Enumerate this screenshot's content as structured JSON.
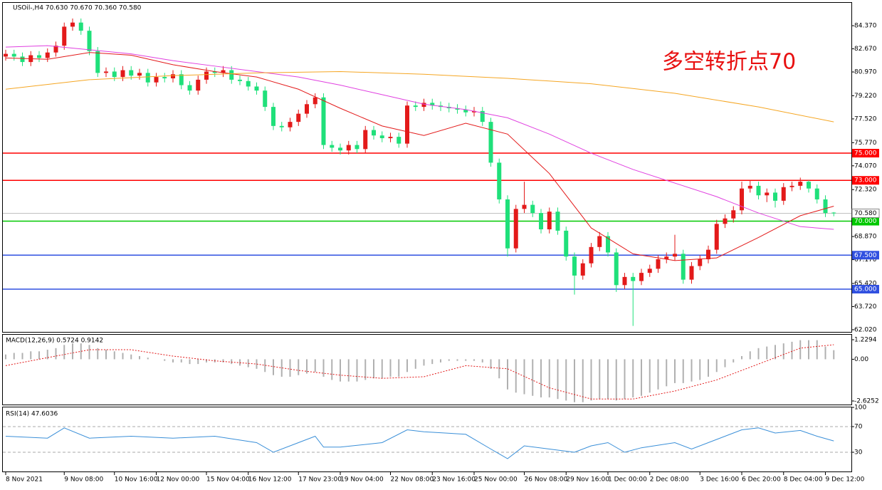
{
  "chart_data": {
    "type": "candlestick",
    "title": "USOil-,H4  70.630 70.670 70.360 70.580",
    "annotation": "多空转折点70",
    "categories": [
      "8 Nov 2021",
      null,
      null,
      null,
      null,
      null,
      null,
      "9 Nov 08:00",
      null,
      null,
      null,
      null,
      null,
      "10 Nov 16:00",
      null,
      null,
      null,
      null,
      "12 Nov 00:00",
      null,
      null,
      null,
      null,
      null,
      "15 Nov 04:00",
      null,
      null,
      null,
      null,
      "16 Nov 12:00",
      null,
      null,
      null,
      null,
      null,
      "17 Nov 23:00",
      null,
      null,
      null,
      null,
      "19 Nov 04:00",
      null,
      null,
      null,
      null,
      null,
      "22 Nov 08:00",
      null,
      null,
      null,
      null,
      "23 Nov 16:00",
      null,
      null,
      null,
      null,
      "25 Nov 00:00",
      null,
      null,
      null,
      null,
      null,
      "26 Nov 08:00",
      null,
      null,
      null,
      null,
      "29 Nov 16:00",
      null,
      null,
      null,
      null,
      "1 Dec 00:00",
      null,
      null,
      null,
      null,
      "2 Dec 08:00",
      null,
      null,
      null,
      null,
      null,
      "3 Dec 16:00",
      null,
      null,
      null,
      null,
      "6 Dec 20:00",
      null,
      null,
      null,
      null,
      "8 Dec 04:00",
      null,
      null,
      null,
      null,
      "9 Dec 12:00",
      null
    ],
    "open": [
      82.1,
      82.3,
      82.1,
      81.7,
      82.2,
      82.0,
      82.4,
      82.9,
      84.3,
      84.6,
      84.0,
      82.5,
      80.9,
      81.0,
      80.6,
      81.1,
      80.7,
      80.9,
      80.2,
      80.6,
      80.5,
      80.8,
      80.0,
      79.6,
      80.4,
      81.0,
      80.9,
      81.1,
      80.4,
      80.3,
      79.9,
      79.6,
      78.4,
      77.0,
      76.9,
      77.3,
      77.9,
      78.6,
      79.1,
      75.6,
      75.4,
      75.2,
      75.6,
      75.3,
      76.7,
      76.3,
      76.1,
      76.2,
      75.7,
      78.5,
      78.4,
      78.7,
      78.5,
      78.4,
      78.3,
      78.2,
      78.0,
      78.1,
      77.3,
      74.3,
      71.6,
      68.0,
      70.9,
      71.2,
      70.6,
      69.4,
      70.7,
      69.3,
      67.4,
      66.0,
      66.9,
      68.1,
      68.9,
      67.7,
      65.3,
      65.9,
      65.6,
      66.2,
      66.5,
      67.2,
      67.4,
      67.6,
      65.7,
      66.7,
      67.2,
      67.9,
      69.8,
      70.2,
      70.8,
      72.4,
      72.6,
      71.9,
      72.1,
      71.5,
      72.5,
      72.6,
      72.9,
      72.4,
      71.6,
      70.63
    ],
    "high": [
      82.6,
      82.6,
      82.4,
      82.5,
      82.5,
      82.7,
      83.2,
      84.6,
      84.9,
      84.9,
      84.3,
      82.8,
      81.3,
      81.3,
      81.4,
      81.4,
      81.2,
      81.2,
      80.9,
      80.9,
      81.1,
      81.1,
      80.3,
      80.7,
      81.3,
      81.3,
      81.4,
      81.4,
      80.7,
      80.6,
      80.2,
      79.9,
      78.7,
      77.3,
      77.6,
      78.2,
      78.9,
      79.4,
      79.4,
      75.9,
      75.7,
      75.9,
      75.9,
      77.0,
      77.0,
      76.6,
      76.5,
      76.5,
      78.8,
      78.8,
      79.0,
      79.0,
      78.8,
      78.7,
      78.6,
      78.5,
      78.4,
      78.4,
      77.6,
      74.6,
      71.9,
      71.2,
      72.9,
      71.5,
      70.9,
      71.0,
      71.0,
      69.6,
      67.7,
      67.2,
      68.4,
      69.2,
      69.2,
      68.0,
      66.2,
      66.2,
      66.5,
      66.8,
      67.5,
      67.7,
      69.0,
      67.9,
      67.0,
      67.5,
      68.2,
      70.1,
      70.5,
      71.1,
      72.9,
      73.0,
      72.9,
      72.4,
      72.4,
      72.8,
      72.9,
      73.2,
      73.0,
      72.7,
      71.9,
      70.67
    ],
    "low": [
      81.8,
      81.8,
      81.4,
      81.4,
      81.7,
      81.7,
      82.1,
      82.6,
      84.0,
      83.7,
      82.2,
      80.6,
      80.6,
      80.3,
      80.3,
      80.4,
      80.4,
      79.9,
      79.9,
      80.2,
      80.2,
      79.7,
      79.3,
      79.3,
      80.1,
      80.6,
      80.6,
      80.1,
      80.0,
      79.6,
      79.3,
      78.1,
      76.7,
      76.6,
      76.6,
      77.0,
      77.6,
      78.3,
      75.3,
      75.1,
      74.9,
      74.9,
      75.0,
      75.0,
      76.0,
      75.8,
      75.8,
      75.4,
      75.4,
      78.1,
      78.1,
      78.2,
      78.1,
      78.0,
      77.9,
      77.7,
      77.7,
      77.0,
      74.0,
      71.3,
      67.4,
      67.7,
      70.6,
      70.3,
      69.1,
      69.1,
      69.0,
      67.1,
      64.6,
      65.7,
      66.6,
      67.8,
      67.4,
      64.8,
      65.0,
      62.3,
      65.3,
      65.9,
      66.2,
      66.9,
      67.1,
      65.4,
      65.4,
      66.4,
      66.9,
      67.6,
      69.5,
      69.9,
      70.5,
      72.1,
      71.6,
      71.4,
      71.0,
      71.2,
      72.2,
      72.3,
      72.1,
      71.3,
      70.3,
      70.36
    ],
    "close": [
      82.3,
      82.1,
      81.7,
      82.2,
      82.0,
      82.4,
      82.9,
      84.3,
      84.6,
      84.0,
      82.5,
      80.9,
      81.0,
      80.6,
      81.1,
      80.7,
      80.9,
      80.2,
      80.6,
      80.5,
      80.8,
      80.0,
      79.6,
      80.4,
      81.0,
      80.9,
      81.1,
      80.4,
      80.3,
      79.9,
      79.6,
      78.4,
      77.0,
      76.9,
      77.3,
      77.9,
      78.6,
      79.1,
      75.6,
      75.4,
      75.2,
      75.6,
      75.3,
      76.7,
      76.3,
      76.1,
      76.2,
      75.7,
      78.5,
      78.4,
      78.7,
      78.5,
      78.4,
      78.3,
      78.2,
      78.0,
      78.1,
      77.3,
      74.3,
      71.6,
      68.0,
      70.9,
      71.2,
      70.6,
      69.4,
      70.7,
      69.3,
      67.4,
      66.0,
      66.9,
      68.1,
      68.9,
      67.7,
      65.3,
      65.9,
      65.6,
      66.2,
      66.5,
      67.2,
      67.4,
      67.6,
      65.7,
      66.7,
      67.2,
      67.9,
      69.8,
      70.2,
      70.8,
      72.4,
      72.6,
      71.9,
      72.1,
      71.5,
      72.5,
      72.6,
      72.9,
      72.4,
      71.6,
      70.6,
      70.58
    ],
    "up_color": "#e31a1a",
    "down_color": "#1fe07a",
    "series": [
      {
        "color": "#e31a1a",
        "x": [
          0,
          5,
          10,
          15,
          20,
          25,
          30,
          35,
          40,
          45,
          50,
          55,
          60,
          65,
          70,
          75,
          80,
          85,
          90,
          95,
          99
        ],
        "values": [
          82.0,
          81.9,
          82.4,
          82.2,
          81.5,
          81.0,
          80.6,
          79.7,
          78.3,
          77.0,
          76.3,
          77.2,
          76.4,
          73.5,
          69.5,
          67.6,
          67.1,
          67.3,
          68.8,
          70.4,
          71.1
        ]
      },
      {
        "color": "#e040e0",
        "x": [
          0,
          5,
          10,
          15,
          20,
          25,
          30,
          35,
          40,
          45,
          50,
          55,
          60,
          65,
          70,
          75,
          80,
          85,
          90,
          95,
          99
        ],
        "values": [
          82.8,
          82.9,
          82.6,
          82.3,
          81.8,
          81.4,
          81.0,
          80.6,
          80.0,
          79.3,
          78.6,
          78.2,
          77.6,
          76.4,
          75.0,
          73.8,
          72.8,
          71.8,
          70.6,
          69.6,
          69.4
        ]
      },
      {
        "color": "#f5a623",
        "x": [
          0,
          10,
          20,
          30,
          40,
          50,
          60,
          70,
          80,
          90,
          99
        ],
        "values": [
          79.7,
          80.4,
          80.7,
          80.9,
          81.0,
          80.8,
          80.5,
          80.1,
          79.4,
          78.4,
          77.3
        ]
      }
    ],
    "levels": [
      {
        "value": 75,
        "label": "75.000",
        "color": "#ff0000"
      },
      {
        "value": 73,
        "label": "73.000",
        "color": "#ff0000"
      },
      {
        "value": 70,
        "label": "70.000",
        "color": "#00c800"
      },
      {
        "value": 67.5,
        "label": "67.500",
        "color": "#3050e0"
      },
      {
        "value": 65,
        "label": "65.000",
        "color": "#3050e0"
      }
    ],
    "last_price": {
      "value": 70.58,
      "label": "70.580"
    },
    "ylim": [
      61.86,
      86.05
    ],
    "yticks": [
      {
        "value": 84.37,
        "label": "84.370"
      },
      {
        "value": 82.67,
        "label": "82.670"
      },
      {
        "value": 80.97,
        "label": "80.970"
      },
      {
        "value": 79.22,
        "label": "79.220"
      },
      {
        "value": 77.52,
        "label": "77.520"
      },
      {
        "value": 75.77,
        "label": "75.770"
      },
      {
        "value": 74.07,
        "label": "74.070"
      },
      {
        "value": 72.32,
        "label": "72.320"
      },
      {
        "value": 68.87,
        "label": "68.870"
      },
      {
        "value": 67.17,
        "label": "67.170"
      },
      {
        "value": 65.42,
        "label": "65.420"
      },
      {
        "value": 63.72,
        "label": "63.720"
      },
      {
        "value": 62.02,
        "label": "62.020"
      }
    ],
    "macd": {
      "title": "MACD(12,26,9) 0.5724 0.9142",
      "hist_color": "#b0b0b0",
      "signal_color": "#e31a1a",
      "values": [
        0.3,
        0.4,
        0.4,
        0.5,
        0.5,
        0.6,
        0.7,
        0.9,
        1.0,
        1.0,
        0.9,
        0.7,
        0.6,
        0.5,
        0.4,
        0.3,
        0.2,
        0.1,
        0.0,
        -0.1,
        -0.2,
        -0.2,
        -0.3,
        -0.3,
        -0.2,
        -0.2,
        -0.2,
        -0.3,
        -0.4,
        -0.5,
        -0.6,
        -0.8,
        -1.0,
        -1.1,
        -1.1,
        -1.0,
        -0.9,
        -0.8,
        -1.1,
        -1.3,
        -1.4,
        -1.4,
        -1.4,
        -1.3,
        -1.2,
        -1.2,
        -1.1,
        -1.1,
        -0.8,
        -0.6,
        -0.4,
        -0.3,
        -0.2,
        -0.1,
        -0.1,
        -0.1,
        -0.1,
        -0.2,
        -0.6,
        -1.2,
        -1.9,
        -2.1,
        -2.2,
        -2.3,
        -2.4,
        -2.4,
        -2.5,
        -2.6,
        -2.7,
        -2.7,
        -2.6,
        -2.5,
        -2.5,
        -2.6,
        -2.5,
        -2.4,
        -2.3,
        -2.1,
        -1.9,
        -1.7,
        -1.5,
        -1.5,
        -1.4,
        -1.3,
        -1.1,
        -0.8,
        -0.5,
        -0.2,
        0.2,
        0.5,
        0.7,
        0.8,
        0.9,
        1.0,
        1.1,
        1.2,
        1.2,
        1.2,
        0.8,
        0.5724
      ],
      "signal_x": [
        0,
        5,
        10,
        15,
        20,
        25,
        30,
        35,
        40,
        45,
        50,
        55,
        60,
        65,
        70,
        75,
        80,
        85,
        90,
        95,
        99
      ],
      "signal": [
        -0.4,
        0.1,
        0.6,
        0.6,
        0.2,
        -0.1,
        -0.3,
        -0.7,
        -1.0,
        -1.2,
        -1.1,
        -0.4,
        -0.6,
        -1.8,
        -2.5,
        -2.5,
        -2.0,
        -1.3,
        -0.3,
        0.7,
        0.9142
      ],
      "ylim": [
        -2.849,
        1.543
      ],
      "yticks": [
        1.2294,
        {
          "value": 0,
          "label": "0.00"
        },
        -2.6252
      ]
    },
    "rsi": {
      "title": "RSI(14) 47.6036",
      "color": "#3a8fd8",
      "x": [
        0,
        5,
        7,
        10,
        15,
        20,
        25,
        30,
        32,
        35,
        37,
        38,
        40,
        45,
        48,
        50,
        55,
        58,
        60,
        62,
        65,
        68,
        70,
        72,
        74,
        76,
        80,
        82,
        85,
        88,
        90,
        92,
        95,
        97,
        99
      ],
      "values": [
        55,
        52,
        68,
        52,
        55,
        52,
        55,
        45,
        30,
        45,
        55,
        38,
        38,
        45,
        65,
        62,
        58,
        35,
        20,
        40,
        35,
        30,
        40,
        45,
        30,
        37,
        45,
        35,
        50,
        65,
        68,
        60,
        64,
        55,
        47.6036
      ],
      "ylim": [
        0,
        100
      ],
      "yticks": [
        100,
        70,
        30
      ],
      "levels": [
        70,
        30
      ]
    }
  }
}
